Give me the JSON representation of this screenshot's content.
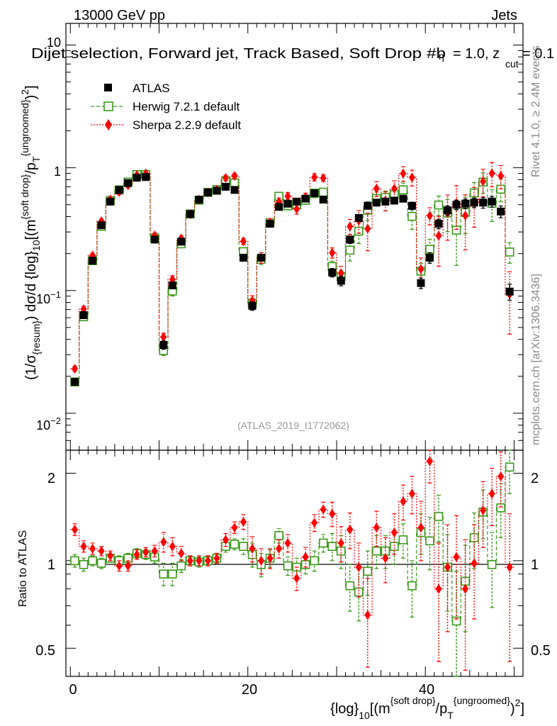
{
  "header": {
    "energy_label": "13000 GeV pp",
    "process_label": "Jets",
    "plot_title": "Dijet selection, Forward jet, Track Based, Soft Drop #b",
    "title_suffix": "= 1.0, z",
    "title_cut": "cut",
    "title_tail": "= 0.1",
    "side_rivet": "Rivet 4.1.0, ≥ 2.4M events",
    "side_mcplots": "mcplots.cern.ch [arXiv:1306.3436]",
    "analysis_id": "(ATLAS_2019_I1772062)"
  },
  "legend": {
    "atlas": "ATLAS",
    "herwig": "Herwig 7.2.1 default",
    "sherpa": "Sherpa 2.2.9 default"
  },
  "axes": {
    "y_label_main": "(1/σ_{resum}) dσ/d {log}_{10}[(m^{soft drop}/p_T^{ungroomed})^2]",
    "y_label_ratio": "Ratio to ATLAS",
    "x_label": "{log}_{10}[(m^{soft drop}/p_T^{ungroomed})^2]",
    "y_ticks_main": [
      "10^{-2}",
      "10^{-1}",
      "1",
      "10"
    ],
    "y_ticks_ratio": [
      "0.5",
      "1",
      "2"
    ],
    "x_ticks": [
      "0",
      "20",
      "40"
    ]
  },
  "colors": {
    "atlas": "#000000",
    "herwig": "#3a9a1a",
    "sherpa": "#ff0000",
    "ratio_line": "#000000"
  },
  "chart_data": {
    "type": "scatter",
    "title": "Dijet selection, Forward jet, Track Based, Soft Drop #b = 1.0, z_cut = 0.1",
    "xlabel": "{log}_{10}[(m^{soft drop}/p_T^{ungroomed})^2]",
    "ylabel": "(1/σ_{resum}) dσ/d {log}_{10}[(m^{soft drop}/p_T^{ungroomed})^2]",
    "xlim": [
      -0.5,
      51
    ],
    "ylim": [
      0.005,
      15
    ],
    "ratio_ylim": [
      0.4,
      2.4
    ],
    "yscale": "log",
    "x": [
      0.5,
      1.5,
      2.5,
      3.5,
      4.5,
      5.5,
      6.5,
      7.5,
      8.5,
      9.5,
      10.5,
      11.5,
      12.5,
      13.5,
      14.5,
      15.5,
      16.5,
      17.5,
      18.5,
      19.5,
      20.5,
      21.5,
      22.5,
      23.5,
      24.5,
      25.5,
      26.5,
      27.5,
      28.5,
      29.5,
      30.5,
      31.5,
      32.5,
      33.5,
      34.5,
      35.5,
      36.5,
      37.5,
      38.5,
      39.5,
      40.5,
      41.5,
      42.5,
      43.5,
      44.5,
      45.5,
      46.5,
      47.5,
      48.5,
      49.5
    ],
    "series": [
      {
        "name": "ATLAS",
        "values": [
          0.018,
          0.063,
          0.175,
          0.34,
          0.53,
          0.66,
          0.75,
          0.83,
          0.84,
          0.26,
          0.036,
          0.11,
          0.25,
          0.42,
          0.55,
          0.63,
          0.65,
          0.7,
          0.66,
          0.185,
          0.075,
          0.185,
          0.35,
          0.48,
          0.51,
          0.53,
          0.56,
          0.62,
          0.55,
          0.14,
          0.12,
          0.26,
          0.39,
          0.49,
          0.52,
          0.53,
          0.54,
          0.56,
          0.49,
          0.115,
          0.185,
          0.35,
          0.45,
          0.5,
          0.51,
          0.52,
          0.52,
          0.53,
          0.44,
          0.098
        ],
        "yerr_rel": [
          0.05,
          0.05,
          0.04,
          0.04,
          0.03,
          0.03,
          0.03,
          0.03,
          0.03,
          0.04,
          0.08,
          0.06,
          0.04,
          0.03,
          0.03,
          0.03,
          0.03,
          0.03,
          0.03,
          0.05,
          0.08,
          0.06,
          0.04,
          0.04,
          0.04,
          0.04,
          0.04,
          0.04,
          0.05,
          0.08,
          0.09,
          0.07,
          0.06,
          0.06,
          0.06,
          0.06,
          0.06,
          0.06,
          0.07,
          0.1,
          0.1,
          0.09,
          0.09,
          0.09,
          0.09,
          0.09,
          0.1,
          0.1,
          0.11,
          0.15
        ]
      },
      {
        "name": "Herwig 7.2.1 default",
        "ratio": [
          1.0,
          0.97,
          1.0,
          0.98,
          1.02,
          1.0,
          1.02,
          1.06,
          1.05,
          1.03,
          0.9,
          0.9,
          0.96,
          1.0,
          0.99,
          1.0,
          1.02,
          1.12,
          1.14,
          1.12,
          1.05,
          0.97,
          1.02,
          1.22,
          0.96,
          0.95,
          0.97,
          1.0,
          1.15,
          1.12,
          1.08,
          0.82,
          0.78,
          0.92,
          1.08,
          1.08,
          1.12,
          1.18,
          0.82,
          1.25,
          1.17,
          1.42,
          0.95,
          0.62,
          0.85,
          1.2,
          1.47,
          0.97,
          1.52,
          2.1
        ],
        "ratio_err": [
          0.05,
          0.05,
          0.04,
          0.04,
          0.03,
          0.04,
          0.04,
          0.04,
          0.04,
          0.05,
          0.08,
          0.08,
          0.05,
          0.04,
          0.04,
          0.04,
          0.04,
          0.05,
          0.05,
          0.07,
          0.1,
          0.09,
          0.07,
          0.07,
          0.07,
          0.07,
          0.07,
          0.08,
          0.08,
          0.12,
          0.14,
          0.15,
          0.16,
          0.16,
          0.14,
          0.14,
          0.15,
          0.16,
          0.18,
          0.2,
          0.24,
          0.26,
          0.28,
          0.3,
          0.28,
          0.26,
          0.28,
          0.28,
          0.32,
          0.4
        ]
      },
      {
        "name": "Sherpa 2.2.9 default",
        "ratio": [
          1.28,
          1.12,
          1.1,
          1.08,
          1.04,
          0.96,
          0.96,
          1.05,
          1.07,
          1.08,
          1.16,
          1.12,
          1.06,
          1.0,
          1.0,
          1.0,
          1.02,
          1.18,
          1.3,
          1.36,
          1.1,
          1.0,
          1.02,
          1.1,
          1.15,
          0.87,
          1.03,
          1.35,
          1.5,
          1.45,
          1.15,
          1.28,
          0.95,
          0.65,
          1.3,
          1.02,
          1.25,
          1.6,
          1.7,
          1.3,
          2.2,
          0.8,
          0.95,
          1.03,
          0.8,
          0.98,
          1.49,
          1.7,
          1.95,
          0.95
        ],
        "ratio_err": [
          0.06,
          0.05,
          0.05,
          0.04,
          0.04,
          0.04,
          0.04,
          0.04,
          0.04,
          0.05,
          0.09,
          0.08,
          0.06,
          0.04,
          0.04,
          0.04,
          0.04,
          0.06,
          0.06,
          0.08,
          0.11,
          0.1,
          0.08,
          0.08,
          0.08,
          0.08,
          0.08,
          0.09,
          0.09,
          0.14,
          0.16,
          0.18,
          0.2,
          0.22,
          0.18,
          0.18,
          0.2,
          0.22,
          0.25,
          0.3,
          0.35,
          0.35,
          0.38,
          0.4,
          0.38,
          0.35,
          0.38,
          0.38,
          0.42,
          0.5
        ]
      }
    ]
  }
}
